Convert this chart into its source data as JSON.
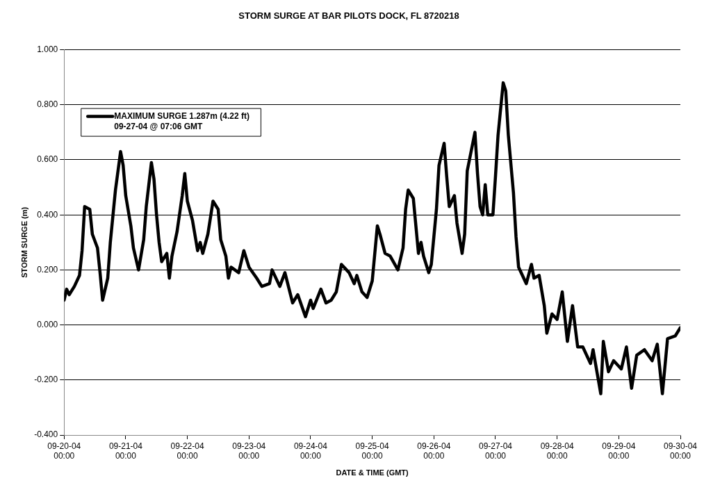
{
  "chart_data": {
    "type": "line",
    "title": "STORM SURGE AT BAR PILOTS DOCK, FL 8720218",
    "xlabel": "DATE & TIME (GMT)",
    "ylabel": "STORM SURGE (m)",
    "xlim": [
      "--09-20T00:00",
      "--09-30T00:00"
    ],
    "xticks": [
      {
        "value": "--09-20T00:00",
        "label": "09-20-04 00:00"
      },
      {
        "value": "--09-21T00:00",
        "label": "09-21-04 00:00"
      },
      {
        "value": "--09-22T00:00",
        "label": "09-22-04 00:00"
      },
      {
        "value": "--09-23T00:00",
        "label": "09-23-04 00:00"
      },
      {
        "value": "--09-24T00:00",
        "label": "09-24-04 00:00"
      },
      {
        "value": "--09-25T00:00",
        "label": "09-25-04 00:00"
      },
      {
        "value": "--09-26T00:00",
        "label": "09-26-04 00:00"
      },
      {
        "value": "--09-27T00:00",
        "label": "09-27-04 00:00"
      },
      {
        "value": "--09-28T00:00",
        "label": "09-28-04 00:00"
      },
      {
        "value": "--09-29T00:00",
        "label": "09-29-04 00:00"
      },
      {
        "value": "--09-30T00:00",
        "label": "09-30-04 00:00"
      }
    ],
    "ylim": [
      -0.4,
      1.0
    ],
    "yticks": [
      {
        "value": -0.4,
        "label": "-0.400"
      },
      {
        "value": -0.2,
        "label": "-0.200"
      },
      {
        "value": 0,
        "label": "0.000"
      },
      {
        "value": 0.2,
        "label": "0.200"
      },
      {
        "value": 0.4,
        "label": "0.400"
      },
      {
        "value": 0.6,
        "label": "0.600"
      },
      {
        "value": 0.8,
        "label": "0.800"
      },
      {
        "value": 1.0,
        "label": "1.000"
      }
    ],
    "grid": "y",
    "legend": "top left",
    "marker": "none",
    "line_style": "solid",
    "series": [
      {
        "name": "MAXIMUM SURGE 1.287m (4.22 ft)\n09-27-04 @ 07:06 GMT",
        "color": "#000000",
        "x": [
          "--09-20T00:00",
          "--09-20T01:00",
          "--09-20T02:00",
          "--09-20T04:00",
          "--09-20T06:00",
          "--09-20T07:00",
          "--09-20T08:00",
          "--09-20T10:00",
          "--09-20T11:00",
          "--09-20T13:00",
          "--09-20T14:00",
          "--09-20T15:00",
          "--09-20T17:00",
          "--09-20T18:00",
          "--09-20T20:00",
          "--09-20T22:00",
          "--09-20T23:00",
          "--09-21T00:00",
          "--09-21T02:00",
          "--09-21T03:00",
          "--09-21T05:00",
          "--09-21T07:00",
          "--09-21T08:00",
          "--09-21T10:00",
          "--09-21T11:00",
          "--09-21T12:00",
          "--09-21T13:00",
          "--09-21T14:00",
          "--09-21T16:00",
          "--09-21T17:00",
          "--09-21T18:00",
          "--09-21T20:00",
          "--09-21T22:00",
          "--09-21T23:00",
          "--09-22T00:00",
          "--09-22T02:00",
          "--09-22T04:00",
          "--09-22T05:00",
          "--09-22T06:00",
          "--09-22T08:00",
          "--09-22T10:00",
          "--09-22T12:00",
          "--09-22T13:00",
          "--09-22T15:00",
          "--09-22T16:00",
          "--09-22T17:00",
          "--09-22T20:00",
          "--09-22T22:00",
          "--09-23T00:00",
          "--09-23T03:00",
          "--09-23T05:00",
          "--09-23T08:00",
          "--09-23T09:00",
          "--09-23T12:00",
          "--09-23T14:00",
          "--09-23T17:00",
          "--09-23T19:00",
          "--09-23T22:00",
          "--09-24T00:00",
          "--09-24T01:00",
          "--09-24T04:00",
          "--09-24T06:00",
          "--09-24T08:00",
          "--09-24T10:00",
          "--09-24T12:00",
          "--09-24T15:00",
          "--09-24T17:00",
          "--09-24T18:00",
          "--09-24T20:00",
          "--09-24T22:00",
          "--09-25T00:00",
          "--09-25T02:00",
          "--09-25T03:00",
          "--09-25T05:00",
          "--09-25T07:00",
          "--09-25T10:00",
          "--09-25T12:00",
          "--09-25T13:00",
          "--09-25T14:00",
          "--09-25T16:00",
          "--09-25T18:00",
          "--09-25T19:00",
          "--09-25T20:00",
          "--09-25T22:00",
          "--09-25T23:00",
          "--09-26T01:00",
          "--09-26T02:00",
          "--09-26T04:00",
          "--09-26T05:00",
          "--09-26T06:00",
          "--09-26T08:00",
          "--09-26T09:00",
          "--09-26T11:00",
          "--09-26T12:00",
          "--09-26T13:00",
          "--09-26T16:00",
          "--09-26T17:00",
          "--09-26T18:00",
          "--09-26T19:00",
          "--09-26T20:00",
          "--09-26T21:00",
          "--09-26T23:00",
          "--09-27T00:00",
          "--09-27T01:00",
          "--09-27T03:00",
          "--09-27T04:00",
          "--09-27T05:00",
          "--09-27T07:00",
          "--09-27T08:00",
          "--09-27T09:00",
          "--09-27T12:00",
          "--09-27T14:00",
          "--09-27T15:00",
          "--09-27T17:00",
          "--09-27T19:00",
          "--09-27T20:00",
          "--09-27T22:00",
          "--09-28T00:00",
          "--09-28T02:00",
          "--09-28T04:00",
          "--09-28T06:00",
          "--09-28T08:00",
          "--09-28T10:00",
          "--09-28T13:00",
          "--09-28T14:00",
          "--09-28T17:00",
          "--09-28T18:00",
          "--09-28T20:00",
          "--09-28T22:00",
          "--09-29T01:00",
          "--09-29T03:00",
          "--09-29T05:00",
          "--09-29T07:00",
          "--09-29T10:00",
          "--09-29T13:00",
          "--09-29T15:00",
          "--09-29T17:00",
          "--09-29T19:00",
          "--09-29T22:00",
          "--09-30T00:00"
        ],
        "values": [
          0.09,
          0.13,
          0.11,
          0.14,
          0.18,
          0.27,
          0.43,
          0.42,
          0.33,
          0.28,
          0.19,
          0.09,
          0.17,
          0.3,
          0.49,
          0.63,
          0.58,
          0.47,
          0.36,
          0.28,
          0.2,
          0.31,
          0.43,
          0.59,
          0.53,
          0.4,
          0.3,
          0.23,
          0.26,
          0.17,
          0.25,
          0.34,
          0.47,
          0.55,
          0.45,
          0.38,
          0.27,
          0.3,
          0.26,
          0.33,
          0.45,
          0.42,
          0.31,
          0.25,
          0.17,
          0.21,
          0.19,
          0.27,
          0.21,
          0.17,
          0.14,
          0.15,
          0.2,
          0.14,
          0.19,
          0.08,
          0.11,
          0.03,
          0.09,
          0.06,
          0.13,
          0.08,
          0.09,
          0.12,
          0.22,
          0.19,
          0.15,
          0.18,
          0.12,
          0.1,
          0.16,
          0.36,
          0.33,
          0.26,
          0.25,
          0.2,
          0.28,
          0.42,
          0.49,
          0.46,
          0.26,
          0.3,
          0.25,
          0.19,
          0.22,
          0.42,
          0.58,
          0.66,
          0.54,
          0.43,
          0.47,
          0.37,
          0.26,
          0.33,
          0.56,
          0.7,
          0.55,
          0.43,
          0.4,
          0.51,
          0.4,
          0.4,
          0.54,
          0.69,
          0.88,
          0.85,
          0.69,
          0.48,
          0.32,
          0.21,
          0.15,
          0.22,
          0.17,
          0.18,
          0.07,
          -0.03,
          0.04,
          0.02,
          0.12,
          -0.06,
          0.07,
          -0.08,
          -0.08,
          -0.14,
          -0.09,
          -0.25,
          -0.06,
          -0.17,
          -0.13,
          -0.16,
          -0.08,
          -0.23,
          -0.11,
          -0.09,
          -0.13,
          -0.07,
          -0.25,
          -0.05,
          -0.04,
          -0.01
        ]
      }
    ]
  }
}
